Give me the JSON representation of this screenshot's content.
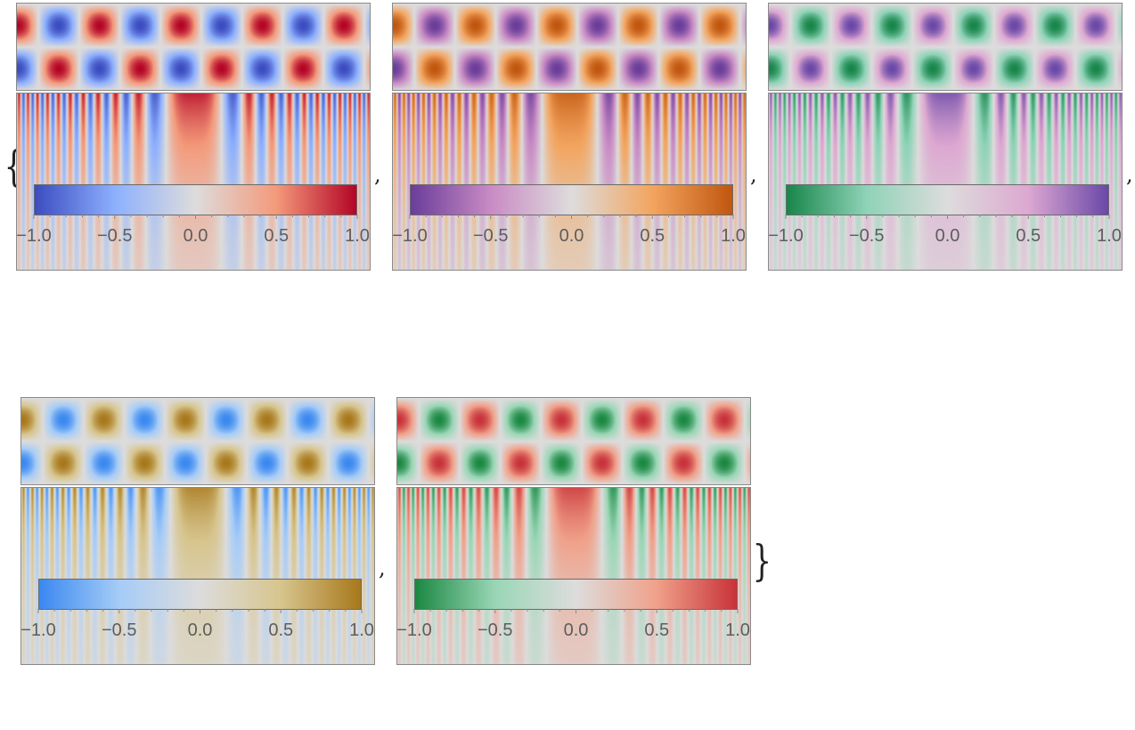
{
  "panels": [
    {
      "id": "p1",
      "colors": [
        "#3b4cc0",
        "#8db0fe",
        "#dddcdc",
        "#f49a7b",
        "#b40426"
      ]
    },
    {
      "id": "p2",
      "colors": [
        "#6a3d9a",
        "#c98bc4",
        "#dddcdc",
        "#f3a560",
        "#c0560f"
      ]
    },
    {
      "id": "p3",
      "colors": [
        "#17864a",
        "#8fd3b8",
        "#dddcdc",
        "#dda8d1",
        "#6a48a8"
      ]
    },
    {
      "id": "p4",
      "colors": [
        "#3a88f0",
        "#a6ccf7",
        "#dddcdc",
        "#d7c58e",
        "#a8781b"
      ]
    },
    {
      "id": "p5",
      "colors": [
        "#1b8842",
        "#9ad6b6",
        "#dddcdc",
        "#f0a18a",
        "#c8323a"
      ]
    }
  ],
  "legend_ticks": [
    "−1.0",
    "−0.5",
    "0.0",
    "0.5",
    "1.0"
  ],
  "legend_range": [
    -1.0,
    1.0
  ],
  "separators": {
    "open": "{",
    "close": "}",
    "comma": ","
  }
}
